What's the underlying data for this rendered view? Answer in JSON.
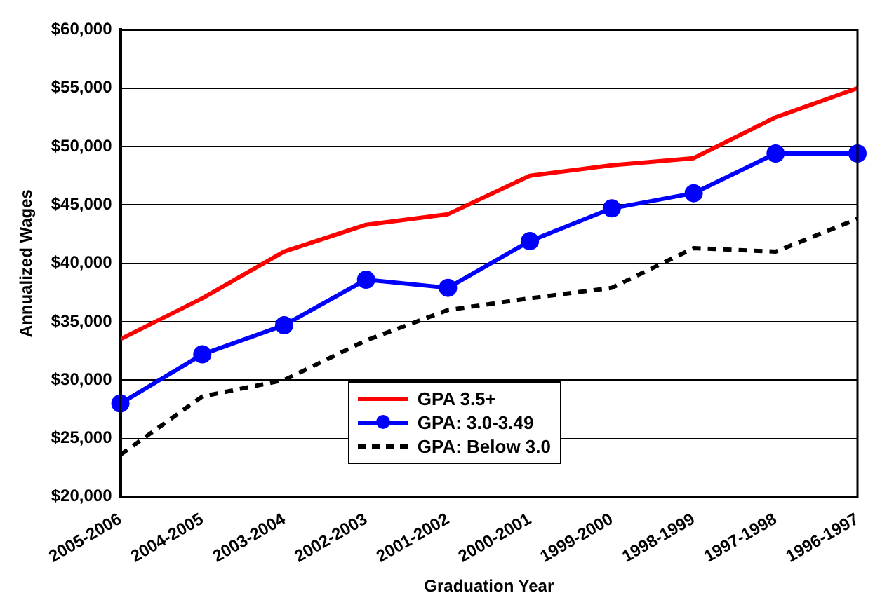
{
  "chart_data": {
    "type": "line",
    "xlabel": "Graduation Year",
    "ylabel": "Annualized Wages",
    "categories": [
      "2005-2006",
      "2004-2005",
      "2003-2004",
      "2002-2003",
      "2001-2002",
      "2000-2001",
      "1999-2000",
      "1998-1999",
      "1997-1998",
      "1996-1997"
    ],
    "series": [
      {
        "name": "GPA 3.5+",
        "color": "#ff0000",
        "marker": "none",
        "line_style": "solid",
        "values": [
          33500,
          37000,
          41000,
          43300,
          44200,
          47500,
          48400,
          49000,
          52500,
          55000
        ]
      },
      {
        "name": "GPA: 3.0-3.49",
        "color": "#0000ff",
        "marker": "circle",
        "line_style": "solid",
        "values": [
          28000,
          32200,
          34700,
          38600,
          37900,
          41900,
          44700,
          46000,
          49400,
          49400
        ]
      },
      {
        "name": "GPA: Below 3.0",
        "color": "#000000",
        "marker": "none",
        "line_style": "dashed",
        "values": [
          23600,
          28600,
          30000,
          33400,
          36000,
          37000,
          37900,
          41300,
          41000,
          43800
        ]
      }
    ],
    "ylim": [
      20000,
      60000
    ],
    "yticks": [
      {
        "value": 20000,
        "label": "$20,000"
      },
      {
        "value": 25000,
        "label": "$25,000"
      },
      {
        "value": 30000,
        "label": "$30,000"
      },
      {
        "value": 35000,
        "label": "$35,000"
      },
      {
        "value": 40000,
        "label": "$40,000"
      },
      {
        "value": 45000,
        "label": "$45,000"
      },
      {
        "value": 50000,
        "label": "$50,000"
      },
      {
        "value": 55000,
        "label": "$55,000"
      },
      {
        "value": 60000,
        "label": "$60,000"
      }
    ],
    "grid": "y",
    "legend": "bottom"
  }
}
